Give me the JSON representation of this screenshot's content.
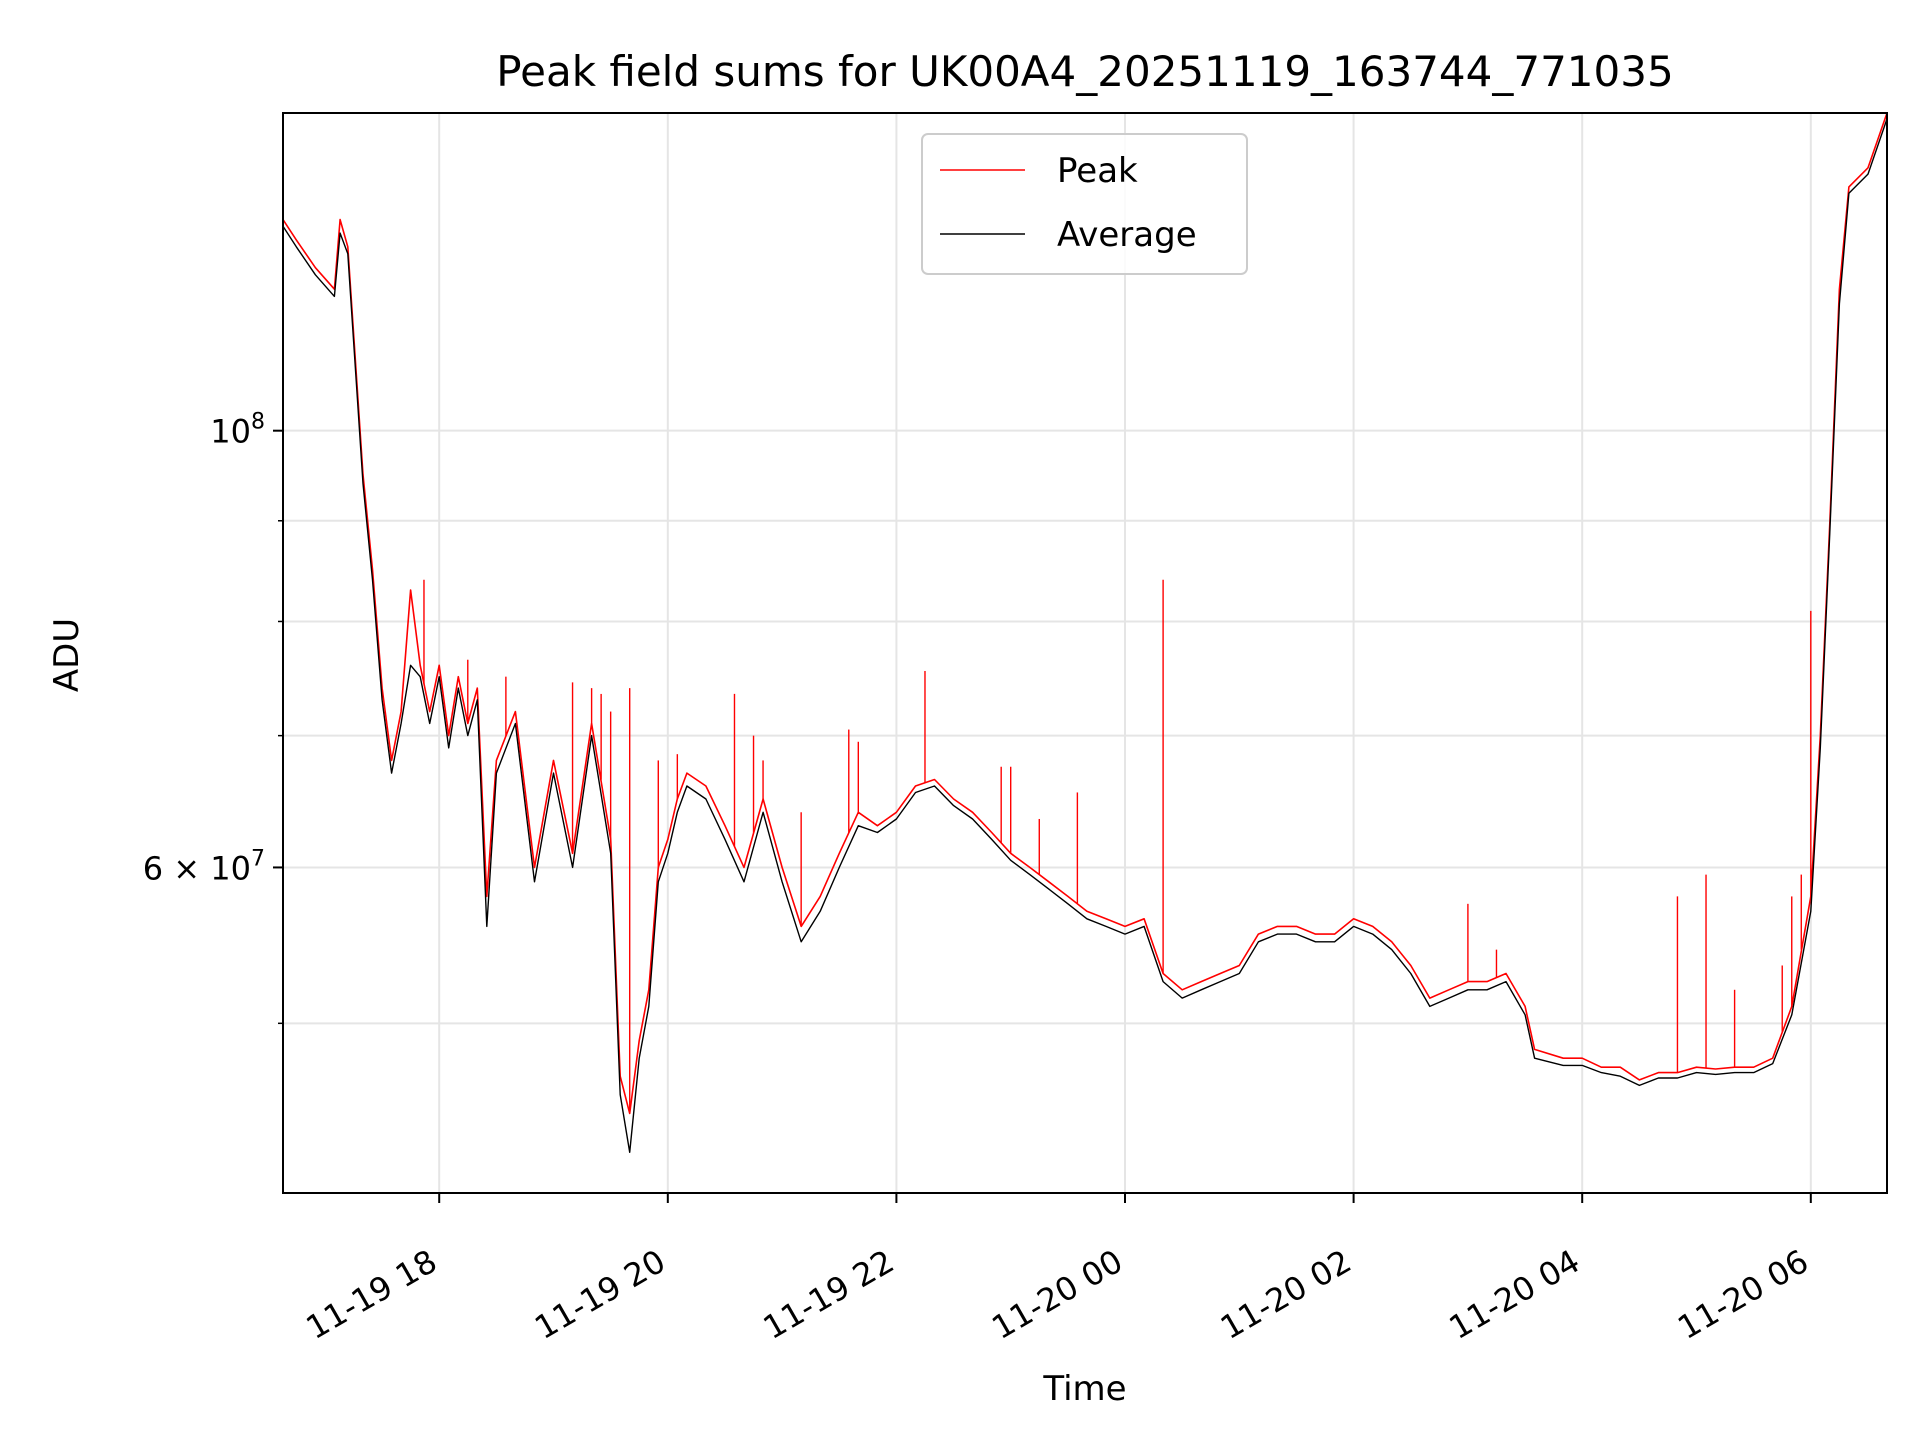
{
  "chart_data": {
    "type": "line",
    "title": "Peak field sums for UK00A4_20251119_163744_771035",
    "xlabel": "Time",
    "ylabel": "ADU",
    "yscale": "log",
    "grid": true,
    "legend_position": "upper-center",
    "xlim": [
      "2025-11-19 16:38",
      "2025-11-20 06:40"
    ],
    "ylim": [
      41000000,
      145000000
    ],
    "x_ticks": [
      "11-19 18",
      "11-19 20",
      "11-19 22",
      "11-20 00",
      "11-20 02",
      "11-20 04",
      "11-20 06"
    ],
    "y_ticks": [
      {
        "value": 100000000,
        "label": "10^8",
        "base": "10",
        "exp": "8"
      },
      {
        "value": 60000000,
        "label": "6×10^7",
        "base": "6 × 10",
        "exp": "7"
      }
    ],
    "series": [
      {
        "name": "Peak",
        "color": "#ff0000",
        "points": [
          [
            "2025-11-19 16:38",
            128000000
          ],
          [
            "2025-11-19 16:45",
            125000000
          ],
          [
            "2025-11-19 16:55",
            121000000
          ],
          [
            "2025-11-19 17:05",
            118000000
          ],
          [
            "2025-11-19 17:08",
            128000000
          ],
          [
            "2025-11-19 17:12",
            124000000
          ],
          [
            "2025-11-19 17:17",
            105000000
          ],
          [
            "2025-11-19 17:20",
            95000000
          ],
          [
            "2025-11-19 17:25",
            85000000
          ],
          [
            "2025-11-19 17:30",
            74000000
          ],
          [
            "2025-11-19 17:35",
            68000000
          ],
          [
            "2025-11-19 17:40",
            72000000
          ],
          [
            "2025-11-19 17:45",
            83000000
          ],
          [
            "2025-11-19 17:50",
            76000000
          ],
          [
            "2025-11-19 17:55",
            72000000
          ],
          [
            "2025-11-19 18:00",
            76000000
          ],
          [
            "2025-11-19 18:05",
            70000000
          ],
          [
            "2025-11-19 18:10",
            75000000
          ],
          [
            "2025-11-19 18:15",
            71000000
          ],
          [
            "2025-11-19 18:20",
            74000000
          ],
          [
            "2025-11-19 18:25",
            58000000
          ],
          [
            "2025-11-19 18:30",
            68000000
          ],
          [
            "2025-11-19 18:40",
            72000000
          ],
          [
            "2025-11-19 18:50",
            60000000
          ],
          [
            "2025-11-19 19:00",
            68000000
          ],
          [
            "2025-11-19 19:10",
            61000000
          ],
          [
            "2025-11-19 19:20",
            71000000
          ],
          [
            "2025-11-19 19:30",
            62000000
          ],
          [
            "2025-11-19 19:35",
            47000000
          ],
          [
            "2025-11-19 19:40",
            45000000
          ],
          [
            "2025-11-19 19:45",
            49000000
          ],
          [
            "2025-11-19 19:50",
            52000000
          ],
          [
            "2025-11-19 19:55",
            60000000
          ],
          [
            "2025-11-19 20:00",
            62000000
          ],
          [
            "2025-11-19 20:05",
            65000000
          ],
          [
            "2025-11-19 20:10",
            67000000
          ],
          [
            "2025-11-19 20:20",
            66000000
          ],
          [
            "2025-11-19 20:30",
            63000000
          ],
          [
            "2025-11-19 20:40",
            60000000
          ],
          [
            "2025-11-19 20:50",
            65000000
          ],
          [
            "2025-11-19 21:00",
            60000000
          ],
          [
            "2025-11-19 21:10",
            56000000
          ],
          [
            "2025-11-19 21:20",
            58000000
          ],
          [
            "2025-11-19 21:30",
            61000000
          ],
          [
            "2025-11-19 21:40",
            64000000
          ],
          [
            "2025-11-19 21:50",
            63000000
          ],
          [
            "2025-11-19 22:00",
            64000000
          ],
          [
            "2025-11-19 22:10",
            66000000
          ],
          [
            "2025-11-19 22:20",
            66500000
          ],
          [
            "2025-11-19 22:30",
            65000000
          ],
          [
            "2025-11-19 22:40",
            64000000
          ],
          [
            "2025-11-19 22:50",
            62500000
          ],
          [
            "2025-11-19 23:00",
            61000000
          ],
          [
            "2025-11-19 23:10",
            60000000
          ],
          [
            "2025-11-19 23:20",
            59000000
          ],
          [
            "2025-11-19 23:30",
            58000000
          ],
          [
            "2025-11-19 23:40",
            57000000
          ],
          [
            "2025-11-19 23:50",
            56500000
          ],
          [
            "2025-11-20 00:00",
            56000000
          ],
          [
            "2025-11-20 00:10",
            56500000
          ],
          [
            "2025-11-20 00:20",
            53000000
          ],
          [
            "2025-11-20 00:30",
            52000000
          ],
          [
            "2025-11-20 00:40",
            52500000
          ],
          [
            "2025-11-20 00:50",
            53000000
          ],
          [
            "2025-11-20 01:00",
            53500000
          ],
          [
            "2025-11-20 01:10",
            55500000
          ],
          [
            "2025-11-20 01:20",
            56000000
          ],
          [
            "2025-11-20 01:30",
            56000000
          ],
          [
            "2025-11-20 01:40",
            55500000
          ],
          [
            "2025-11-20 01:50",
            55500000
          ],
          [
            "2025-11-20 02:00",
            56500000
          ],
          [
            "2025-11-20 02:10",
            56000000
          ],
          [
            "2025-11-20 02:20",
            55000000
          ],
          [
            "2025-11-20 02:30",
            53500000
          ],
          [
            "2025-11-20 02:40",
            51500000
          ],
          [
            "2025-11-20 02:50",
            52000000
          ],
          [
            "2025-11-20 03:00",
            52500000
          ],
          [
            "2025-11-20 03:10",
            52500000
          ],
          [
            "2025-11-20 03:20",
            53000000
          ],
          [
            "2025-11-20 03:30",
            51000000
          ],
          [
            "2025-11-20 03:35",
            48500000
          ],
          [
            "2025-11-20 03:50",
            48000000
          ],
          [
            "2025-11-20 04:00",
            48000000
          ],
          [
            "2025-11-20 04:10",
            47500000
          ],
          [
            "2025-11-20 04:20",
            47500000
          ],
          [
            "2025-11-20 04:30",
            46800000
          ],
          [
            "2025-11-20 04:40",
            47200000
          ],
          [
            "2025-11-20 04:50",
            47200000
          ],
          [
            "2025-11-20 05:00",
            47500000
          ],
          [
            "2025-11-20 05:10",
            47400000
          ],
          [
            "2025-11-20 05:20",
            47500000
          ],
          [
            "2025-11-20 05:30",
            47500000
          ],
          [
            "2025-11-20 05:40",
            48000000
          ],
          [
            "2025-11-20 05:50",
            51000000
          ],
          [
            "2025-11-20 06:00",
            58000000
          ],
          [
            "2025-11-20 06:05",
            70000000
          ],
          [
            "2025-11-20 06:10",
            90000000
          ],
          [
            "2025-11-20 06:15",
            118000000
          ],
          [
            "2025-11-20 06:20",
            133000000
          ],
          [
            "2025-11-20 06:30",
            136000000
          ],
          [
            "2025-11-20 06:40",
            145000000
          ]
        ],
        "spikes": [
          [
            "2025-11-19 17:45",
            83000000
          ],
          [
            "2025-11-19 17:52",
            84000000
          ],
          [
            "2025-11-19 18:15",
            76500000
          ],
          [
            "2025-11-19 18:35",
            75000000
          ],
          [
            "2025-11-19 19:10",
            74500000
          ],
          [
            "2025-11-19 19:20",
            74000000
          ],
          [
            "2025-11-19 19:25",
            73500000
          ],
          [
            "2025-11-19 19:30",
            72000000
          ],
          [
            "2025-11-19 19:40",
            74000000
          ],
          [
            "2025-11-19 19:55",
            68000000
          ],
          [
            "2025-11-19 20:05",
            68500000
          ],
          [
            "2025-11-19 20:35",
            73500000
          ],
          [
            "2025-11-19 20:45",
            70000000
          ],
          [
            "2025-11-19 20:50",
            68000000
          ],
          [
            "2025-11-19 21:10",
            64000000
          ],
          [
            "2025-11-19 21:35",
            70500000
          ],
          [
            "2025-11-19 21:40",
            69500000
          ],
          [
            "2025-11-19 22:15",
            75500000
          ],
          [
            "2025-11-19 22:55",
            67500000
          ],
          [
            "2025-11-19 23:00",
            67500000
          ],
          [
            "2025-11-19 23:15",
            63500000
          ],
          [
            "2025-11-19 23:35",
            65500000
          ],
          [
            "2025-11-20 00:20",
            84000000
          ],
          [
            "2025-11-20 03:00",
            57500000
          ],
          [
            "2025-11-20 03:15",
            54500000
          ],
          [
            "2025-11-20 04:50",
            58000000
          ],
          [
            "2025-11-20 05:05",
            59500000
          ],
          [
            "2025-11-20 05:20",
            52000000
          ],
          [
            "2025-11-20 05:45",
            53500000
          ],
          [
            "2025-11-20 05:50",
            58000000
          ],
          [
            "2025-11-20 05:55",
            59500000
          ],
          [
            "2025-11-20 06:00",
            81000000
          ]
        ]
      },
      {
        "name": "Average",
        "color": "#000000",
        "points": [
          [
            "2025-11-19 16:38",
            127000000
          ],
          [
            "2025-11-19 16:45",
            124000000
          ],
          [
            "2025-11-19 16:55",
            120000000
          ],
          [
            "2025-11-19 17:05",
            117000000
          ],
          [
            "2025-11-19 17:08",
            126000000
          ],
          [
            "2025-11-19 17:12",
            123000000
          ],
          [
            "2025-11-19 17:17",
            104000000
          ],
          [
            "2025-11-19 17:20",
            94000000
          ],
          [
            "2025-11-19 17:25",
            84000000
          ],
          [
            "2025-11-19 17:30",
            73000000
          ],
          [
            "2025-11-19 17:35",
            67000000
          ],
          [
            "2025-11-19 17:40",
            71000000
          ],
          [
            "2025-11-19 17:45",
            76000000
          ],
          [
            "2025-11-19 17:50",
            75000000
          ],
          [
            "2025-11-19 17:55",
            71000000
          ],
          [
            "2025-11-19 18:00",
            75000000
          ],
          [
            "2025-11-19 18:05",
            69000000
          ],
          [
            "2025-11-19 18:10",
            74000000
          ],
          [
            "2025-11-19 18:15",
            70000000
          ],
          [
            "2025-11-19 18:20",
            73000000
          ],
          [
            "2025-11-19 18:25",
            56000000
          ],
          [
            "2025-11-19 18:30",
            67000000
          ],
          [
            "2025-11-19 18:40",
            71000000
          ],
          [
            "2025-11-19 18:50",
            59000000
          ],
          [
            "2025-11-19 19:00",
            67000000
          ],
          [
            "2025-11-19 19:10",
            60000000
          ],
          [
            "2025-11-19 19:20",
            70000000
          ],
          [
            "2025-11-19 19:30",
            61000000
          ],
          [
            "2025-11-19 19:35",
            46000000
          ],
          [
            "2025-11-19 19:40",
            43000000
          ],
          [
            "2025-11-19 19:45",
            48000000
          ],
          [
            "2025-11-19 19:50",
            51000000
          ],
          [
            "2025-11-19 19:55",
            59000000
          ],
          [
            "2025-11-19 20:00",
            61000000
          ],
          [
            "2025-11-19 20:05",
            64000000
          ],
          [
            "2025-11-19 20:10",
            66000000
          ],
          [
            "2025-11-19 20:20",
            65000000
          ],
          [
            "2025-11-19 20:30",
            62000000
          ],
          [
            "2025-11-19 20:40",
            59000000
          ],
          [
            "2025-11-19 20:50",
            64000000
          ],
          [
            "2025-11-19 21:00",
            59000000
          ],
          [
            "2025-11-19 21:10",
            55000000
          ],
          [
            "2025-11-19 21:20",
            57000000
          ],
          [
            "2025-11-19 21:30",
            60000000
          ],
          [
            "2025-11-19 21:40",
            63000000
          ],
          [
            "2025-11-19 21:50",
            62500000
          ],
          [
            "2025-11-19 22:00",
            63500000
          ],
          [
            "2025-11-19 22:10",
            65500000
          ],
          [
            "2025-11-19 22:20",
            66000000
          ],
          [
            "2025-11-19 22:30",
            64500000
          ],
          [
            "2025-11-19 22:40",
            63500000
          ],
          [
            "2025-11-19 22:50",
            62000000
          ],
          [
            "2025-11-19 23:00",
            60500000
          ],
          [
            "2025-11-19 23:10",
            59500000
          ],
          [
            "2025-11-19 23:20",
            58500000
          ],
          [
            "2025-11-19 23:30",
            57500000
          ],
          [
            "2025-11-19 23:40",
            56500000
          ],
          [
            "2025-11-19 23:50",
            56000000
          ],
          [
            "2025-11-20 00:00",
            55500000
          ],
          [
            "2025-11-20 00:10",
            56000000
          ],
          [
            "2025-11-20 00:20",
            52500000
          ],
          [
            "2025-11-20 00:30",
            51500000
          ],
          [
            "2025-11-20 00:40",
            52000000
          ],
          [
            "2025-11-20 00:50",
            52500000
          ],
          [
            "2025-11-20 01:00",
            53000000
          ],
          [
            "2025-11-20 01:10",
            55000000
          ],
          [
            "2025-11-20 01:20",
            55500000
          ],
          [
            "2025-11-20 01:30",
            55500000
          ],
          [
            "2025-11-20 01:40",
            55000000
          ],
          [
            "2025-11-20 01:50",
            55000000
          ],
          [
            "2025-11-20 02:00",
            56000000
          ],
          [
            "2025-11-20 02:10",
            55500000
          ],
          [
            "2025-11-20 02:20",
            54500000
          ],
          [
            "2025-11-20 02:30",
            53000000
          ],
          [
            "2025-11-20 02:40",
            51000000
          ],
          [
            "2025-11-20 02:50",
            51500000
          ],
          [
            "2025-11-20 03:00",
            52000000
          ],
          [
            "2025-11-20 03:10",
            52000000
          ],
          [
            "2025-11-20 03:20",
            52500000
          ],
          [
            "2025-11-20 03:30",
            50500000
          ],
          [
            "2025-11-20 03:35",
            48000000
          ],
          [
            "2025-11-20 03:50",
            47600000
          ],
          [
            "2025-11-20 04:00",
            47600000
          ],
          [
            "2025-11-20 04:10",
            47200000
          ],
          [
            "2025-11-20 04:20",
            47000000
          ],
          [
            "2025-11-20 04:30",
            46500000
          ],
          [
            "2025-11-20 04:40",
            46900000
          ],
          [
            "2025-11-20 04:50",
            46900000
          ],
          [
            "2025-11-20 05:00",
            47200000
          ],
          [
            "2025-11-20 05:10",
            47100000
          ],
          [
            "2025-11-20 05:20",
            47200000
          ],
          [
            "2025-11-20 05:30",
            47200000
          ],
          [
            "2025-11-20 05:40",
            47700000
          ],
          [
            "2025-11-20 05:50",
            50500000
          ],
          [
            "2025-11-20 06:00",
            57000000
          ],
          [
            "2025-11-20 06:05",
            69000000
          ],
          [
            "2025-11-20 06:10",
            89000000
          ],
          [
            "2025-11-20 06:15",
            116000000
          ],
          [
            "2025-11-20 06:20",
            132000000
          ],
          [
            "2025-11-20 06:30",
            135000000
          ],
          [
            "2025-11-20 06:40",
            144000000
          ]
        ]
      }
    ]
  }
}
